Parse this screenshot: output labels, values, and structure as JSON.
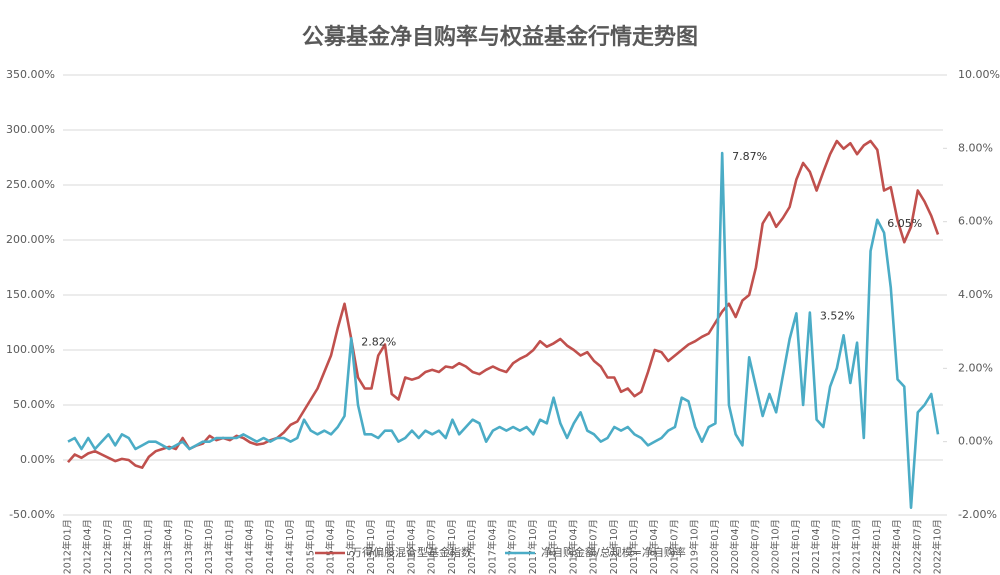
{
  "chart_data": {
    "type": "line",
    "title": "公募基金净自购率与权益基金行情走势图",
    "categories": [
      "2012年01月",
      null,
      null,
      "2012年04月",
      null,
      null,
      "2012年07月",
      null,
      null,
      "2012年10月",
      null,
      null,
      "2013年01月",
      null,
      null,
      "2013年04月",
      null,
      null,
      "2013年07月",
      null,
      null,
      "2013年10月",
      null,
      null,
      "2014年01月",
      null,
      null,
      "2014年04月",
      null,
      null,
      "2014年07月",
      null,
      null,
      "2014年10月",
      null,
      null,
      "2015年01月",
      null,
      null,
      "2015年04月",
      null,
      null,
      "2015年07月",
      null,
      null,
      "2015年10月",
      null,
      null,
      "2016年01月",
      null,
      null,
      "2016年04月",
      null,
      null,
      "2016年07月",
      null,
      null,
      "2016年10月",
      null,
      null,
      "2017年01月",
      null,
      null,
      "2017年04月",
      null,
      null,
      "2017年07月",
      null,
      null,
      "2017年10月",
      null,
      null,
      "2018年01月",
      null,
      null,
      "2018年04月",
      null,
      null,
      "2018年07月",
      null,
      null,
      "2018年10月",
      null,
      null,
      "2019年01月",
      null,
      null,
      "2019年04月",
      null,
      null,
      "2019年07月",
      null,
      null,
      "2019年10月",
      null,
      null,
      "2020年01月",
      null,
      null,
      "2020年04月",
      null,
      null,
      "2020年07月",
      null,
      null,
      "2020年10月",
      null,
      null,
      "2021年01月",
      null,
      null,
      "2021年04月",
      null,
      null,
      "2021年07月",
      null,
      null,
      "2021年10月",
      null,
      null,
      "2022年01月",
      null,
      null,
      "2022年04月",
      null,
      null,
      "2022年07月",
      null,
      null,
      "2022年10月"
    ],
    "series": [
      {
        "name": "万得偏股混合型基金指数",
        "color": "#c0504d",
        "values": [
          -2,
          5,
          2,
          6,
          8,
          5,
          2,
          -1,
          1,
          0,
          -5,
          -7,
          3,
          8,
          10,
          12,
          10,
          20,
          10,
          13,
          15,
          22,
          18,
          20,
          18,
          22,
          20,
          16,
          14,
          15,
          18,
          20,
          25,
          32,
          35,
          45,
          55,
          65,
          80,
          95,
          120,
          142,
          110,
          75,
          65,
          65,
          95,
          105,
          60,
          55,
          75,
          73,
          75,
          80,
          82,
          80,
          85,
          84,
          88,
          85,
          80,
          78,
          82,
          85,
          82,
          80,
          88,
          92,
          95,
          100,
          108,
          103,
          106,
          110,
          104,
          100,
          95,
          98,
          90,
          85,
          75,
          75,
          62,
          65,
          58,
          62,
          80,
          100,
          98,
          90,
          95,
          100,
          105,
          108,
          112,
          115,
          125,
          135,
          142,
          130,
          145,
          150,
          175,
          215,
          225,
          212,
          220,
          230,
          255,
          270,
          262,
          245,
          262,
          278,
          290,
          283,
          288,
          278,
          286,
          290,
          282,
          245,
          248,
          218,
          198,
          212,
          245,
          235,
          222,
          205
        ]
      },
      {
        "name": "净自购金额/总规模=净自购率",
        "color": "#4bacc6",
        "axis": "y2",
        "values": [
          0,
          0.1,
          -0.2,
          0.1,
          -0.2,
          0,
          0.2,
          -0.1,
          0.2,
          0.1,
          -0.2,
          -0.1,
          0,
          0,
          -0.1,
          -0.2,
          -0.1,
          0,
          -0.2,
          -0.1,
          0,
          0,
          0.1,
          0.1,
          0.1,
          0.1,
          0.2,
          0.1,
          0,
          0.1,
          0,
          0.1,
          0.1,
          0,
          0.1,
          0.6,
          0.3,
          0.2,
          0.3,
          0.2,
          0.4,
          0.7,
          2.82,
          1.0,
          0.2,
          0.2,
          0.1,
          0.3,
          0.3,
          0,
          0.1,
          0.3,
          0.1,
          0.3,
          0.2,
          0.3,
          0.1,
          0.6,
          0.2,
          0.4,
          0.6,
          0.5,
          0,
          0.3,
          0.4,
          0.3,
          0.4,
          0.3,
          0.4,
          0.2,
          0.6,
          0.5,
          1.2,
          0.5,
          0.1,
          0.5,
          0.8,
          0.3,
          0.2,
          0,
          0.1,
          0.4,
          0.3,
          0.4,
          0.2,
          0.1,
          -0.1,
          0,
          0.1,
          0.3,
          0.4,
          1.2,
          1.1,
          0.4,
          0,
          0.4,
          0.5,
          7.87,
          1.0,
          0.2,
          -0.1,
          2.3,
          1.5,
          0.7,
          1.3,
          0.8,
          1.8,
          2.8,
          3.5,
          1.0,
          3.52,
          0.6,
          0.4,
          1.5,
          2.0,
          2.9,
          1.6,
          2.7,
          0.1,
          5.2,
          6.05,
          5.7,
          4.2,
          1.7,
          1.5,
          -1.8,
          0.8,
          1.0,
          1.3,
          0.2
        ],
        "value_labels": [
          null,
          null,
          null,
          null,
          null,
          null,
          null,
          null,
          null,
          null,
          null,
          null,
          null,
          null,
          null,
          null,
          null,
          null,
          null,
          null,
          null,
          null,
          null,
          null,
          null,
          null,
          null,
          null,
          null,
          null,
          null,
          null,
          null,
          null,
          null,
          null,
          null,
          null,
          null,
          null,
          null,
          null,
          "2.82%",
          null,
          null,
          null,
          null,
          null,
          null,
          null,
          null,
          null,
          null,
          null,
          null,
          null,
          null,
          null,
          null,
          null,
          null,
          null,
          null,
          null,
          null,
          null,
          null,
          null,
          null,
          null,
          null,
          null,
          null,
          null,
          null,
          null,
          null,
          null,
          null,
          null,
          null,
          null,
          null,
          null,
          null,
          null,
          null,
          null,
          null,
          null,
          null,
          null,
          null,
          null,
          null,
          null,
          null,
          "7.87%",
          null,
          null,
          null,
          null,
          null,
          null,
          null,
          null,
          null,
          null,
          null,
          null,
          "3.52%",
          null,
          null,
          null,
          null,
          null,
          null,
          null,
          null,
          null,
          "6.05%",
          null,
          null,
          null,
          null,
          null,
          null,
          null,
          null,
          null
        ]
      }
    ],
    "ylim": [
      -50,
      350
    ],
    "yticks": [
      {
        "value": -50,
        "label": "-50.00%"
      },
      {
        "value": 0,
        "label": "0.00%"
      },
      {
        "value": 50,
        "label": "50.00%"
      },
      {
        "value": 100,
        "label": "100.00%"
      },
      {
        "value": 150,
        "label": "150.00%"
      },
      {
        "value": 200,
        "label": "200.00%"
      },
      {
        "value": 250,
        "label": "250.00%"
      },
      {
        "value": 300,
        "label": "300.00%"
      },
      {
        "value": 350,
        "label": "350.00%"
      }
    ],
    "y2lim": [
      -2,
      10
    ],
    "y2ticks": [
      {
        "value": -2,
        "label": "-2.00%"
      },
      {
        "value": 0,
        "label": "0.00%"
      },
      {
        "value": 2,
        "label": "2.00%"
      },
      {
        "value": 4,
        "label": "4.00%"
      },
      {
        "value": 6,
        "label": "6.00%"
      },
      {
        "value": 8,
        "label": "8.00%"
      },
      {
        "value": 10,
        "label": "10.00%"
      }
    ],
    "grid": true,
    "legend": "bottom"
  }
}
